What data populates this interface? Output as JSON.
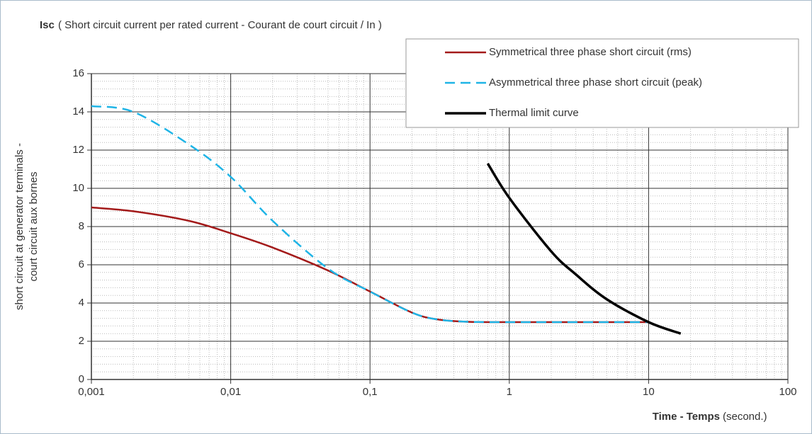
{
  "chart_data": {
    "type": "line",
    "title": "Isc",
    "subtitle": "( Short circuit current per rated current - Courant de court circuit / In )",
    "y_label": [
      "short circuit at generator terminals -",
      "court circuit aux bornes"
    ],
    "x_label": "Time - Temps",
    "x_label_unit": "(second.)",
    "x_log": true,
    "grid": true,
    "minor_grid": true,
    "legend": "top-right",
    "xlim": [
      0.001,
      100
    ],
    "xticks": [
      {
        "value": 0.001,
        "label": "0,001"
      },
      {
        "value": 0.01,
        "label": "0,01"
      },
      {
        "value": 0.1,
        "label": "0,1"
      },
      1,
      10,
      100
    ],
    "ylim": [
      0,
      16
    ],
    "yticks": [
      0,
      2,
      4,
      6,
      8,
      10,
      12,
      14,
      16
    ],
    "series": [
      {
        "name": "Symmetrical three phase short circuit (rms)",
        "color": "#a31a1a",
        "dash": false,
        "width": 2.5,
        "x": [
          0.001,
          0.002,
          0.005,
          0.01,
          0.02,
          0.05,
          0.1,
          0.2,
          0.3,
          0.5,
          1,
          2,
          5,
          10
        ],
        "values": [
          9.0,
          8.8,
          8.3,
          7.65,
          6.9,
          5.7,
          4.6,
          3.5,
          3.15,
          3.02,
          3.0,
          3.0,
          3.0,
          3.0
        ]
      },
      {
        "name": "Asymmetrical three phase short circuit (peak)",
        "color": "#1fb4e6",
        "dash": true,
        "width": 2.5,
        "x": [
          0.001,
          0.002,
          0.005,
          0.01,
          0.02,
          0.05,
          0.1,
          0.2,
          0.3,
          0.5,
          1,
          2,
          5,
          10
        ],
        "values": [
          14.3,
          14.0,
          12.3,
          10.6,
          8.3,
          5.8,
          4.6,
          3.5,
          3.15,
          3.02,
          3.0,
          3.0,
          3.0,
          3.0
        ]
      },
      {
        "name": "Thermal limit curve",
        "color": "#000000",
        "dash": false,
        "width": 3.5,
        "x": [
          0.7,
          1,
          2,
          3,
          5,
          10,
          17
        ],
        "values": [
          11.3,
          9.5,
          6.7,
          5.5,
          4.2,
          3.0,
          2.4
        ]
      }
    ]
  }
}
